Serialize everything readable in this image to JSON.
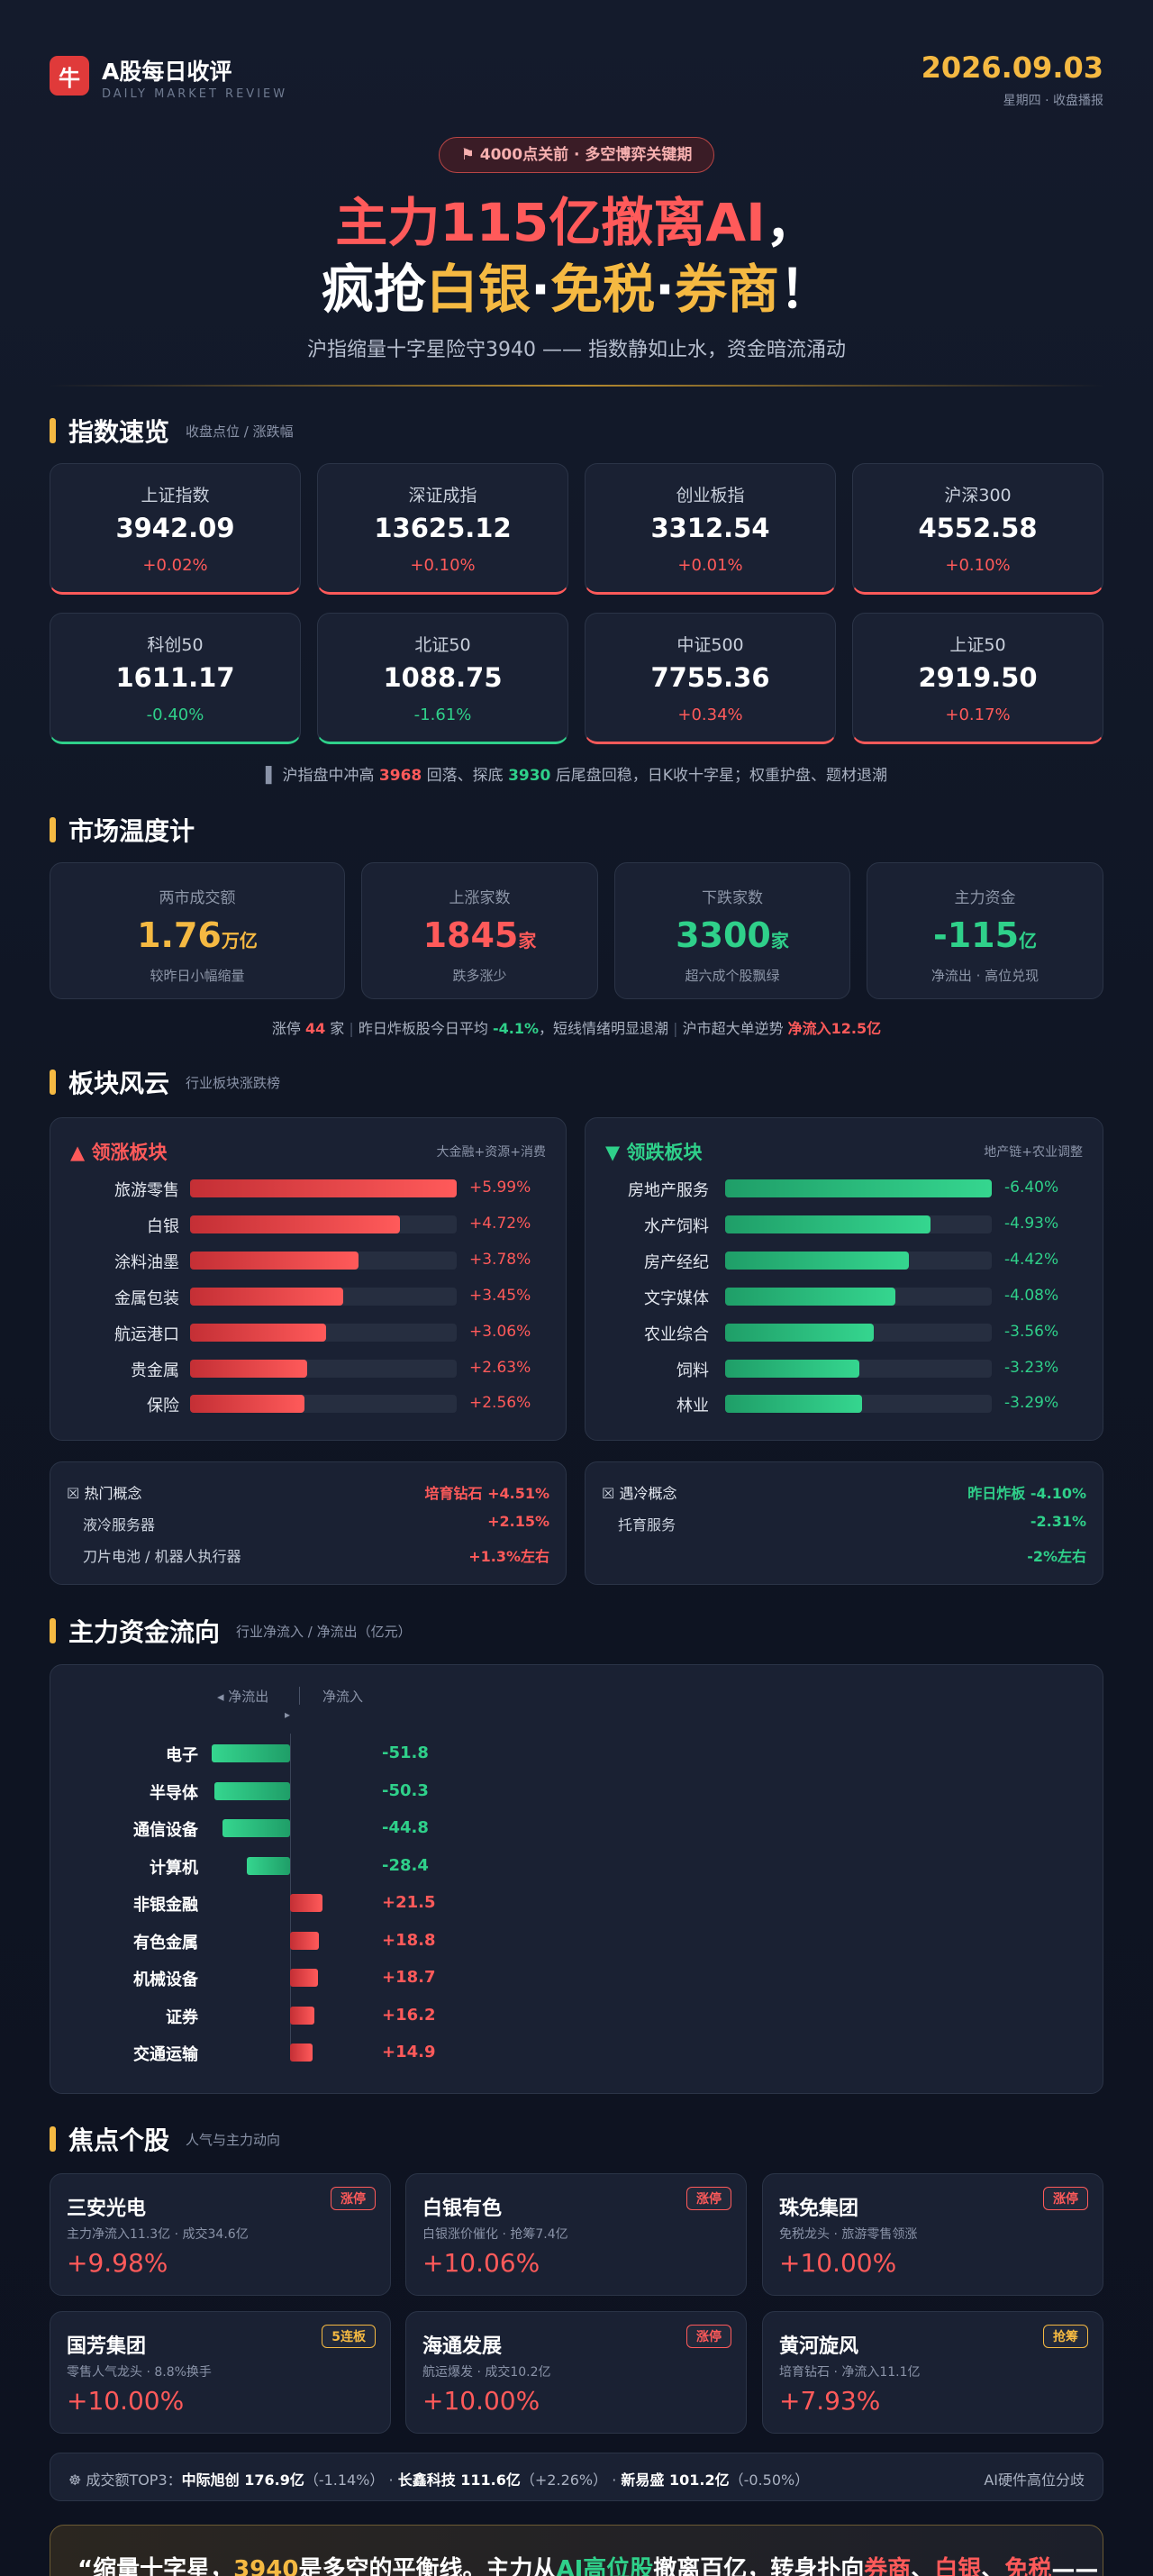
{
  "header": {
    "logo": "牛",
    "title": "A股每日收评",
    "subtitle": "DAILY MARKET REVIEW",
    "date": "2026.09.03",
    "date_note": "星期四 · 收盘播报"
  },
  "hero": {
    "badge": "⚑ 4000点关前 · 多空博弈关键期",
    "headline": [
      [
        {
          "text": "主力115亿撤离AI",
          "tone": "red"
        },
        {
          "text": "，",
          "tone": "white"
        }
      ],
      [
        {
          "text": "疯抢",
          "tone": "white"
        },
        {
          "text": "白银",
          "tone": "gold"
        },
        {
          "text": "·",
          "tone": "white"
        },
        {
          "text": "免税",
          "tone": "gold"
        },
        {
          "text": "·",
          "tone": "white"
        },
        {
          "text": "券商",
          "tone": "gold"
        },
        {
          "text": "！",
          "tone": "white"
        }
      ]
    ],
    "subtitle": "沪指缩量十字星险守3940 —— 指数静如止水，资金暗流涌动"
  },
  "indices": {
    "title": "指数速览",
    "subtitle": "收盘点位 / 涨跌幅",
    "cards": [
      {
        "name": "上证指数",
        "value": "3942.09",
        "change": "+0.02%"
      },
      {
        "name": "深证成指",
        "value": "13625.12",
        "change": "+0.10%"
      },
      {
        "name": "创业板指",
        "value": "3312.54",
        "change": "+0.01%"
      },
      {
        "name": "沪深300",
        "value": "4552.58",
        "change": "+0.10%"
      },
      {
        "name": "科创50",
        "value": "1611.17",
        "change": "-0.40%"
      },
      {
        "name": "北证50",
        "value": "1088.75",
        "change": "-1.61%"
      },
      {
        "name": "中证500",
        "value": "7755.36",
        "change": "+0.34%"
      },
      {
        "name": "上证50",
        "value": "2919.50",
        "change": "+0.17%"
      }
    ],
    "footnote": [
      {
        "text": "沪指盘中冲高 "
      },
      {
        "text": "3968",
        "tone": "red"
      },
      {
        "text": " 回落、探底 "
      },
      {
        "text": "3930",
        "tone": "green"
      },
      {
        "text": " 后尾盘回稳，日K收十字星；权重护盘、题材退潮"
      }
    ]
  },
  "temperature": {
    "title": "市场温度计",
    "cards": [
      {
        "label": "两市成交额",
        "value": "1.76",
        "unit": "万亿",
        "note": "较昨日小幅缩量",
        "tone": "gold"
      },
      {
        "label": "上涨家数",
        "value": "1845",
        "unit": "家",
        "note": "跌多涨少",
        "tone": "red"
      },
      {
        "label": "下跌家数",
        "value": "3300",
        "unit": "家",
        "note": "超六成个股飘绿",
        "tone": "green"
      },
      {
        "label": "主力资金",
        "value": "-115",
        "unit": "亿",
        "note": "净流出 · 高位兑现",
        "tone": "green"
      }
    ],
    "footnote": [
      [
        {
          "text": "涨停 "
        },
        {
          "text": "44",
          "tone": "red"
        },
        {
          "text": " 家"
        }
      ],
      [
        {
          "text": "昨日炸板股今日平均 "
        },
        {
          "text": "-4.1%",
          "tone": "green"
        },
        {
          "text": "，短线情绪明显退潮"
        }
      ],
      [
        {
          "text": "沪市超大单逆势 "
        },
        {
          "text": "净流入12.5亿",
          "tone": "red"
        }
      ]
    ]
  },
  "sectors": {
    "title": "板块风云",
    "subtitle": "行业板块涨跌榜",
    "panels": [
      {
        "icon": "▲",
        "title": "领涨板块",
        "tag": "大金融+资源+消费",
        "rows": [
          {
            "name": "旅游零售",
            "change": "+5.99%"
          },
          {
            "name": "白银",
            "change": "+4.72%"
          },
          {
            "name": "涂料油墨",
            "change": "+3.78%"
          },
          {
            "name": "金属包装",
            "change": "+3.45%"
          },
          {
            "name": "航运港口",
            "change": "+3.06%"
          },
          {
            "name": "贵金属",
            "change": "+2.63%"
          },
          {
            "name": "保险",
            "change": "+2.56%"
          }
        ]
      },
      {
        "icon": "▼",
        "title": "领跌板块",
        "tag": "地产链+农业调整",
        "rows": [
          {
            "name": "房地产服务",
            "change": "-6.40%"
          },
          {
            "name": "水产饲料",
            "change": "-4.93%"
          },
          {
            "name": "房产经纪",
            "change": "-4.42%"
          },
          {
            "name": "文字媒体",
            "change": "-4.08%"
          },
          {
            "name": "农业综合",
            "change": "-3.56%"
          },
          {
            "name": "饲料",
            "change": "-3.23%"
          },
          {
            "name": "林业",
            "change": "-3.29%"
          }
        ]
      }
    ],
    "concepts": [
      {
        "title": "热门概念",
        "lead": "培育钻石",
        "lead_change": "+4.51%",
        "items": [
          {
            "name": "液冷服务器",
            "change": "+2.15%"
          },
          {
            "name": "刀片电池 / 机器人执行器",
            "change": "+1.3%左右"
          }
        ]
      },
      {
        "title": "遇冷概念",
        "lead": "昨日炸板",
        "lead_change": "-4.10%",
        "items": [
          {
            "name": "托育服务",
            "change": "-2.31%"
          },
          {
            "change": "-2%左右"
          }
        ]
      }
    ]
  },
  "flows": {
    "title": "主力资金流向",
    "subtitle": "行业净流入 / 净流出（亿元）",
    "legend_out": "◂ 净流出",
    "legend_in": "净流入",
    "rows": [
      {
        "name": "电子",
        "value": "-51.8"
      },
      {
        "name": "半导体",
        "value": "-50.3"
      },
      {
        "name": "通信设备",
        "value": "-44.8"
      },
      {
        "name": "计算机",
        "value": "-28.4"
      },
      {
        "name": "非银金融",
        "value": "+21.5"
      },
      {
        "name": "有色金属",
        "value": "+18.8"
      },
      {
        "name": "机械设备",
        "value": "+18.7"
      },
      {
        "name": "证券",
        "value": "+16.2"
      },
      {
        "name": "交通运输",
        "value": "+14.9"
      }
    ]
  },
  "stocks": {
    "title": "焦点个股",
    "subtitle": "人气与主力动向",
    "cards": [
      {
        "name": "三安光电",
        "tag": "涨停",
        "tag_tone": "red",
        "note": "主力净流入11.3亿 · 成交34.6亿",
        "change": "+9.98%"
      },
      {
        "name": "白银有色",
        "tag": "涨停",
        "tag_tone": "red",
        "note": "白银涨价催化 · 抢筹7.4亿",
        "change": "+10.06%"
      },
      {
        "name": "珠免集团",
        "tag": "涨停",
        "tag_tone": "red",
        "note": "免税龙头 · 旅游零售领涨",
        "change": "+10.00%"
      },
      {
        "name": "国芳集团",
        "tag": "5连板",
        "tag_tone": "gold",
        "note": "零售人气龙头 · 8.8%换手",
        "change": "+10.00%"
      },
      {
        "name": "海通发展",
        "tag": "涨停",
        "tag_tone": "red",
        "note": "航运爆发 · 成交10.2亿",
        "change": "+10.00%"
      },
      {
        "name": "黄河旋风",
        "tag": "抢筹",
        "tag_tone": "gold",
        "note": "培育钻石 · 净流入11.1亿",
        "change": "+7.93%"
      }
    ],
    "top3": {
      "label": "成交额TOP3：",
      "items": [
        {
          "name": "中际旭创 176.9亿",
          "change": "（-1.14%）"
        },
        {
          "name": "长鑫科技 111.6亿",
          "change": "（+2.26%）"
        },
        {
          "name": "新易盛 101.2亿",
          "change": "（-0.50%）"
        }
      ],
      "comment": "AI硬件高位分歧"
    }
  },
  "quote": [
    {
      "text": "“缩量十字星，"
    },
    {
      "text": "3940",
      "tone": "gold"
    },
    {
      "text": "是多空的平衡线。主力从"
    },
    {
      "text": "AI高位股",
      "tone": "green"
    },
    {
      "text": "撤离百亿，转身扑向"
    },
    {
      "text": "券商",
      "tone": "red"
    },
    {
      "text": "、"
    },
    {
      "text": "白银",
      "tone": "red"
    },
    {
      "text": "、"
    },
    {
      "text": "免税",
      "tone": "red"
    },
    {
      "text": "——"
    }
  ]
}
